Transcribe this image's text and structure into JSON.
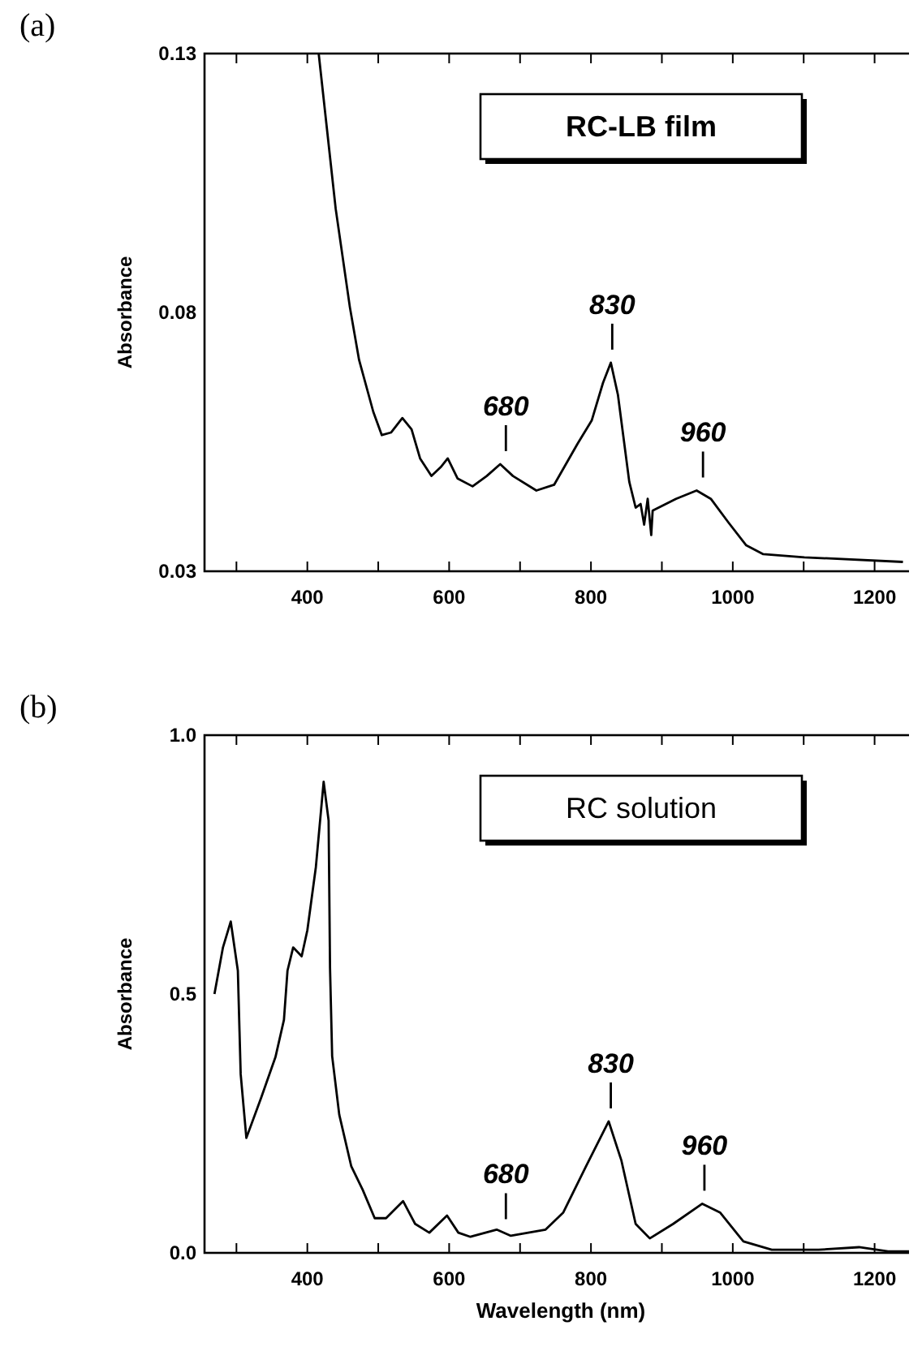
{
  "chart_data": [
    {
      "type": "line",
      "title": "(a)",
      "ylabel": "Absorbance",
      "legend": "top right",
      "xlim": [
        255,
        1260
      ],
      "ylim": [
        0.03,
        0.13
      ],
      "xticks": [
        {
          "value": 300,
          "label": null
        },
        400,
        {
          "value": 500,
          "label": null
        },
        600,
        {
          "value": 700,
          "label": null
        },
        800,
        {
          "value": 900,
          "label": null
        },
        1000,
        {
          "value": 1100,
          "label": null
        },
        1200
      ],
      "yticks": [
        0.03,
        0.08,
        0.13
      ],
      "annotations": [
        {
          "text": "680",
          "x": 680,
          "y": 0.0507
        },
        {
          "text": "830",
          "x": 830,
          "y": 0.0703
        },
        {
          "text": "960",
          "x": 958,
          "y": 0.0456
        }
      ],
      "series": [
        {
          "name": "RC-LB film",
          "color": "#000000",
          "x": [
            416,
            440,
            460,
            473,
            493,
            505,
            518,
            534,
            547,
            559,
            575,
            588,
            598,
            612,
            633,
            653,
            672,
            690,
            723,
            748,
            781,
            801,
            817,
            828,
            838,
            854,
            863,
            870,
            875,
            880,
            885,
            887,
            920,
            949,
            969,
            994,
            1019,
            1043,
            1101,
            1240
          ],
          "values": [
            0.13,
            0.1,
            0.081,
            0.0708,
            0.0608,
            0.0563,
            0.0568,
            0.0596,
            0.0574,
            0.0518,
            0.0484,
            0.0501,
            0.0518,
            0.0479,
            0.0464,
            0.0484,
            0.0507,
            0.0484,
            0.0456,
            0.0467,
            0.0546,
            0.0591,
            0.0664,
            0.0703,
            0.0641,
            0.0473,
            0.0423,
            0.043,
            0.039,
            0.044,
            0.037,
            0.0417,
            0.044,
            0.0456,
            0.044,
            0.0394,
            0.035,
            0.0333,
            0.0327,
            0.0318
          ]
        }
      ]
    },
    {
      "type": "line",
      "title": "(b)",
      "xlabel": "Wavelength  (nm)",
      "ylabel": "Absorbance",
      "legend": "top right",
      "xlim": [
        255,
        1260
      ],
      "ylim": [
        0,
        1
      ],
      "xticks": [
        {
          "value": 300,
          "label": null
        },
        400,
        {
          "value": 500,
          "label": null
        },
        600,
        {
          "value": 700,
          "label": null
        },
        800,
        {
          "value": 900,
          "label": null
        },
        1000,
        {
          "value": 1100,
          "label": null
        },
        1200
      ],
      "yticks": [
        {
          "value": 0,
          "label": "0.0"
        },
        0.5,
        {
          "value": 1,
          "label": "1.0"
        }
      ],
      "annotations": [
        {
          "text": "680",
          "x": 680,
          "y": 0.04
        },
        {
          "text": "830",
          "x": 828,
          "y": 0.254
        },
        {
          "text": "960",
          "x": 960,
          "y": 0.095
        }
      ],
      "series": [
        {
          "name": "RC solution",
          "color": "#000000",
          "x": [
            269,
            281,
            292,
            302,
            306,
            314,
            335,
            355,
            367,
            372,
            380,
            392,
            400,
            412,
            423,
            430,
            432,
            435,
            445,
            462,
            478,
            495,
            511,
            535,
            552,
            572,
            597,
            613,
            630,
            667,
            687,
            736,
            761,
            793,
            825,
            843,
            863,
            883,
            916,
            957,
            982,
            1015,
            1055,
            1121,
            1178,
            1219,
            1255
          ],
          "values": [
            0.5,
            0.59,
            0.64,
            0.545,
            0.345,
            0.222,
            0.3,
            0.378,
            0.45,
            0.545,
            0.59,
            0.573,
            0.623,
            0.745,
            0.91,
            0.835,
            0.55,
            0.38,
            0.267,
            0.167,
            0.122,
            0.067,
            0.067,
            0.1,
            0.056,
            0.039,
            0.072,
            0.039,
            0.031,
            0.045,
            0.033,
            0.045,
            0.078,
            0.167,
            0.254,
            0.178,
            0.056,
            0.028,
            0.056,
            0.095,
            0.078,
            0.022,
            0.006,
            0.006,
            0.011,
            0.003,
            0.003
          ]
        }
      ]
    }
  ]
}
